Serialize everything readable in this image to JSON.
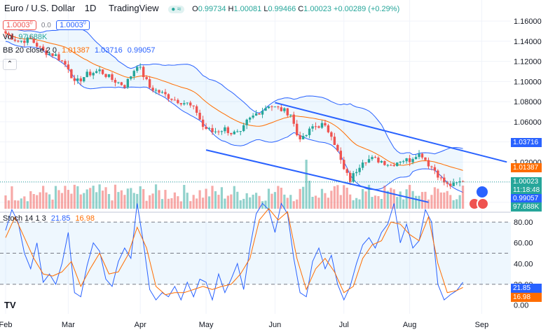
{
  "header": {
    "title": "Euro / U.S. Dollar",
    "interval": "1D",
    "provider": "TradingView",
    "ohlc": {
      "o_label": "O",
      "o": "0.99734",
      "h_label": "H",
      "h": "1.00081",
      "l_label": "L",
      "l": "0.99466",
      "c_label": "C",
      "c": "1.00023",
      "change": "+0.00289 (+0.29%)"
    },
    "sell_price": "1.0003",
    "sell_sup": "0",
    "spread": "0.0",
    "buy_price": "1.0003",
    "buy_sup": "0"
  },
  "indicators": {
    "vol_label": "Vol",
    "vol_value": "97.688K",
    "bb_label": "BB 20 close 2 0",
    "bb_basis": "1.01387",
    "bb_upper": "1.03716",
    "bb_lower": "0.99057",
    "stoch_label": "Stoch 14 1 3",
    "stoch_k": "21.85",
    "stoch_d": "16.98"
  },
  "price_labels": {
    "upper": "1.03716",
    "basis": "1.01387",
    "last": "1.00023",
    "countdown": "11:18:48",
    "lower": "0.99057",
    "volume": "97.688K",
    "stoch_k": "21.85",
    "stoch_d": "16.98"
  },
  "colors": {
    "up": "#26a69a",
    "down": "#ef5350",
    "bb_upper": "#2962ff",
    "bb_basis": "#ff6d00",
    "stoch_k": "#2962ff",
    "stoch_d": "#ff6d00",
    "band_fill": "#2196f3"
  },
  "chart_data": {
    "type": "candlestick",
    "price_axis": {
      "ticks": [
        1.16,
        1.14,
        1.12,
        1.1,
        1.08,
        1.06,
        1.04,
        1.02,
        1.0,
        0.98
      ],
      "tick_labels": [
        "1.16000",
        "1.14000",
        "1.12000",
        "1.10000",
        "1.08000",
        "1.06000",
        "1.04000",
        "1.02000",
        "1.00000",
        "0.98000"
      ],
      "range": [
        0.975,
        1.165
      ]
    },
    "stoch_axis": {
      "ticks": [
        100,
        80,
        60,
        40,
        20,
        0
      ],
      "tick_labels": [
        "100.00",
        "80.00",
        "60.00",
        "40.00",
        "20.00",
        "0.00"
      ],
      "range": [
        -3,
        103
      ],
      "bands": [
        20,
        50,
        80
      ]
    },
    "time_axis": {
      "labels": [
        "Feb",
        "Mar",
        "Apr",
        "May",
        "Jun",
        "Jul",
        "Aug",
        "Sep"
      ],
      "label_bars": [
        0,
        20,
        43,
        64,
        86,
        108,
        129,
        152
      ]
    },
    "anchors": {
      "close": [
        [
          0,
          1.148
        ],
        [
          4,
          1.14
        ],
        [
          8,
          1.142
        ],
        [
          12,
          1.13
        ],
        [
          16,
          1.126
        ],
        [
          20,
          1.114
        ],
        [
          22,
          1.098
        ],
        [
          26,
          1.107
        ],
        [
          30,
          1.111
        ],
        [
          34,
          1.102
        ],
        [
          38,
          1.096
        ],
        [
          40,
          1.106
        ],
        [
          42,
          1.117
        ],
        [
          43,
          1.112
        ],
        [
          46,
          1.094
        ],
        [
          50,
          1.088
        ],
        [
          54,
          1.082
        ],
        [
          58,
          1.078
        ],
        [
          61,
          1.07
        ],
        [
          63,
          1.055
        ],
        [
          66,
          1.05
        ],
        [
          70,
          1.053
        ],
        [
          72,
          1.049
        ],
        [
          75,
          1.048
        ],
        [
          77,
          1.06
        ],
        [
          80,
          1.068
        ],
        [
          82,
          1.072
        ],
        [
          84,
          1.077
        ],
        [
          86,
          1.074
        ],
        [
          88,
          1.072
        ],
        [
          91,
          1.068
        ],
        [
          93,
          1.047
        ],
        [
          95,
          1.043
        ],
        [
          98,
          1.055
        ],
        [
          101,
          1.057
        ],
        [
          104,
          1.048
        ],
        [
          106,
          1.03
        ],
        [
          108,
          1.012
        ],
        [
          110,
          1.002
        ],
        [
          112,
          1.012
        ],
        [
          114,
          1.022
        ],
        [
          117,
          1.023
        ],
        [
          120,
          1.021
        ],
        [
          123,
          1.017
        ],
        [
          126,
          1.022
        ],
        [
          129,
          1.022
        ],
        [
          131,
          1.028
        ],
        [
          133,
          1.027
        ],
        [
          135,
          1.018
        ],
        [
          137,
          1.012
        ],
        [
          139,
          1.003
        ],
        [
          141,
          0.997
        ],
        [
          143,
          0.997
        ],
        [
          145,
          1.0
        ]
      ],
      "stoch_k": [
        [
          0,
          72
        ],
        [
          2,
          92
        ],
        [
          4,
          80
        ],
        [
          6,
          50
        ],
        [
          8,
          35
        ],
        [
          10,
          60
        ],
        [
          12,
          22
        ],
        [
          14,
          30
        ],
        [
          16,
          20
        ],
        [
          18,
          40
        ],
        [
          20,
          70
        ],
        [
          22,
          12
        ],
        [
          24,
          8
        ],
        [
          26,
          38
        ],
        [
          28,
          60
        ],
        [
          30,
          52
        ],
        [
          32,
          25
        ],
        [
          34,
          18
        ],
        [
          36,
          42
        ],
        [
          38,
          55
        ],
        [
          40,
          45
        ],
        [
          42,
          98
        ],
        [
          44,
          60
        ],
        [
          46,
          15
        ],
        [
          48,
          5
        ],
        [
          50,
          12
        ],
        [
          52,
          8
        ],
        [
          54,
          18
        ],
        [
          56,
          5
        ],
        [
          58,
          22
        ],
        [
          60,
          8
        ],
        [
          62,
          25
        ],
        [
          64,
          22
        ],
        [
          66,
          5
        ],
        [
          68,
          30
        ],
        [
          70,
          12
        ],
        [
          72,
          25
        ],
        [
          74,
          40
        ],
        [
          76,
          15
        ],
        [
          78,
          55
        ],
        [
          80,
          88
        ],
        [
          82,
          98
        ],
        [
          84,
          92
        ],
        [
          86,
          70
        ],
        [
          88,
          98
        ],
        [
          90,
          88
        ],
        [
          92,
          45
        ],
        [
          94,
          12
        ],
        [
          96,
          8
        ],
        [
          98,
          42
        ],
        [
          100,
          55
        ],
        [
          102,
          35
        ],
        [
          104,
          48
        ],
        [
          106,
          20
        ],
        [
          108,
          5
        ],
        [
          110,
          18
        ],
        [
          112,
          40
        ],
        [
          114,
          58
        ],
        [
          116,
          65
        ],
        [
          118,
          55
        ],
        [
          120,
          70
        ],
        [
          122,
          78
        ],
        [
          124,
          98
        ],
        [
          126,
          60
        ],
        [
          128,
          78
        ],
        [
          130,
          55
        ],
        [
          132,
          62
        ],
        [
          134,
          92
        ],
        [
          136,
          80
        ],
        [
          138,
          20
        ],
        [
          140,
          5
        ],
        [
          142,
          10
        ],
        [
          144,
          14
        ],
        [
          146,
          22
        ]
      ],
      "stoch_d": [
        [
          0,
          65
        ],
        [
          3,
          85
        ],
        [
          6,
          65
        ],
        [
          9,
          45
        ],
        [
          12,
          30
        ],
        [
          15,
          28
        ],
        [
          18,
          32
        ],
        [
          21,
          42
        ],
        [
          24,
          18
        ],
        [
          27,
          35
        ],
        [
          30,
          50
        ],
        [
          33,
          30
        ],
        [
          36,
          32
        ],
        [
          39,
          48
        ],
        [
          42,
          75
        ],
        [
          45,
          55
        ],
        [
          48,
          18
        ],
        [
          51,
          10
        ],
        [
          54,
          12
        ],
        [
          57,
          12
        ],
        [
          60,
          15
        ],
        [
          63,
          18
        ],
        [
          66,
          15
        ],
        [
          69,
          18
        ],
        [
          72,
          20
        ],
        [
          75,
          30
        ],
        [
          78,
          45
        ],
        [
          81,
          82
        ],
        [
          84,
          93
        ],
        [
          87,
          82
        ],
        [
          90,
          90
        ],
        [
          93,
          45
        ],
        [
          96,
          15
        ],
        [
          99,
          35
        ],
        [
          102,
          45
        ],
        [
          105,
          32
        ],
        [
          108,
          12
        ],
        [
          111,
          18
        ],
        [
          114,
          45
        ],
        [
          117,
          58
        ],
        [
          120,
          62
        ],
        [
          123,
          80
        ],
        [
          126,
          78
        ],
        [
          129,
          68
        ],
        [
          132,
          62
        ],
        [
          135,
          85
        ],
        [
          138,
          40
        ],
        [
          141,
          12
        ],
        [
          144,
          14
        ],
        [
          146,
          17
        ]
      ]
    },
    "channel_lines": [
      {
        "from": [
          86,
          1.079
        ],
        "to": [
          160,
          1.02
        ]
      },
      {
        "from": [
          64,
          1.032
        ],
        "to": [
          135,
          0.98
        ]
      }
    ],
    "series": [
      {
        "name": "Vol",
        "last": 97688
      },
      {
        "name": "BB basis",
        "last": 1.01387
      },
      {
        "name": "BB upper",
        "last": 1.03716
      },
      {
        "name": "BB lower",
        "last": 0.99057
      },
      {
        "name": "%K",
        "last": 21.85
      },
      {
        "name": "%D",
        "last": 16.98
      }
    ],
    "last_close": 1.00023
  }
}
